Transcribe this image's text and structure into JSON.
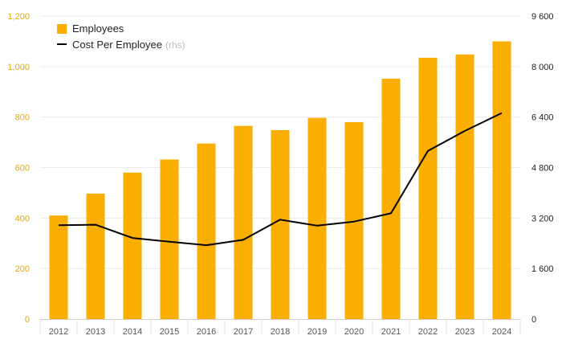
{
  "chart_data": {
    "type": "bar",
    "categories": [
      "2012",
      "2013",
      "2014",
      "2015",
      "2016",
      "2017",
      "2018",
      "2019",
      "2020",
      "2021",
      "2022",
      "2023",
      "2024"
    ],
    "series": [
      {
        "name": "Employees",
        "type": "bar",
        "axis": "left",
        "color": "#f9ae00",
        "values": [
          410,
          497,
          580,
          632,
          695,
          765,
          748,
          797,
          780,
          952,
          1035,
          1048,
          1100
        ]
      },
      {
        "name": "Cost Per Employee",
        "type": "line",
        "axis": "right",
        "color": "#000000",
        "values": [
          2975,
          2990,
          2570,
          2450,
          2340,
          2510,
          3150,
          2960,
          3090,
          3350,
          5330,
          5960,
          6530
        ]
      }
    ],
    "y_left": {
      "min": 0,
      "max": 1200,
      "ticks": [
        "0",
        "200",
        "400",
        "600",
        "800",
        "1,000",
        "1,200"
      ],
      "tick_values": [
        0,
        200,
        400,
        600,
        800,
        1000,
        1200
      ]
    },
    "y_right": {
      "min": 0,
      "max": 9600,
      "ticks": [
        "0",
        "1 600",
        "3 200",
        "4 800",
        "6 400",
        "8 000",
        "9 600"
      ],
      "tick_values": [
        0,
        1600,
        3200,
        4800,
        6400,
        8000,
        9600
      ]
    },
    "legend": {
      "position": "top-left",
      "items": [
        {
          "label": "Employees",
          "suffix": "",
          "marker": "square",
          "color": "#f9ae00"
        },
        {
          "label": "Cost Per Employee",
          "suffix": "(rhs)",
          "marker": "line",
          "color": "#000000"
        }
      ]
    },
    "grid": true,
    "title": "",
    "xlabel": "",
    "ylabel": ""
  }
}
